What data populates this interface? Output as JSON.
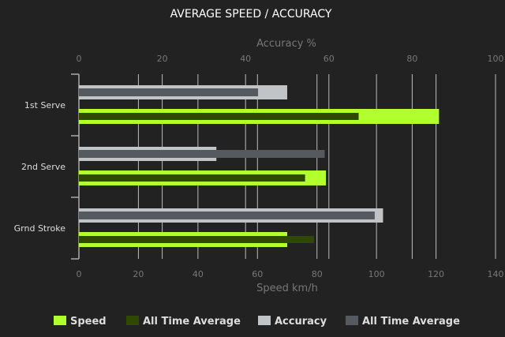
{
  "chart_data": {
    "type": "bar",
    "orientation": "horizontal",
    "title": "AVERAGE SPEED / ACCURACY",
    "categories": [
      "1st Serve",
      "2nd Serve",
      "Grnd Stroke"
    ],
    "x_bottom": {
      "label": "Speed km/h",
      "range": [
        0,
        140
      ],
      "ticks": [
        0,
        20,
        40,
        60,
        80,
        100,
        120,
        140
      ]
    },
    "x_top": {
      "label": "Accuracy %",
      "range": [
        0,
        100
      ],
      "ticks": [
        0,
        20,
        40,
        60,
        80,
        100
      ]
    },
    "grid": true,
    "legend_position": "bottom",
    "series": [
      {
        "name": "Speed",
        "axis": "speed",
        "color": "#b2ff2e",
        "values": [
          121,
          83,
          70
        ]
      },
      {
        "name": "All Time Average",
        "axis": "speed",
        "color": "#2f4a00",
        "values": [
          94,
          76,
          79
        ]
      },
      {
        "name": "Accuracy",
        "axis": "accuracy",
        "color": "#c0c4c7",
        "values": [
          50,
          33,
          73
        ]
      },
      {
        "name": "All Time Average",
        "axis": "accuracy",
        "color": "#555a60",
        "values": [
          43,
          59,
          71
        ]
      }
    ]
  }
}
